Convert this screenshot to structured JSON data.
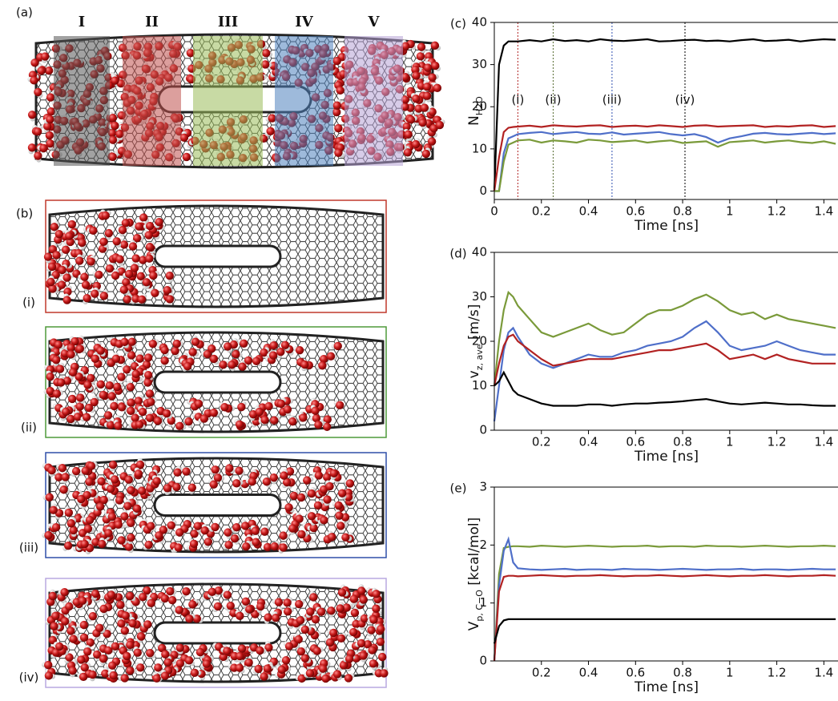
{
  "panels": {
    "a": {
      "label": "(a)",
      "regions": [
        "I",
        "II",
        "III",
        "IV",
        "V"
      ]
    },
    "b": {
      "label": "(b)",
      "snapshots": [
        "(i)",
        "(ii)",
        "(iii)",
        "(iv)"
      ]
    }
  },
  "chart_data": [
    {
      "type": "line",
      "title": "(c)",
      "xlabel": "Time [ns]",
      "ylabel": [
        "N",
        "H2O"
      ],
      "x": [
        0,
        0.02,
        0.04,
        0.06,
        0.08,
        0.1,
        0.15,
        0.2,
        0.25,
        0.3,
        0.35,
        0.4,
        0.45,
        0.5,
        0.55,
        0.6,
        0.65,
        0.7,
        0.75,
        0.8,
        0.85,
        0.9,
        0.95,
        1.0,
        1.05,
        1.1,
        1.15,
        1.2,
        1.25,
        1.3,
        1.35,
        1.4,
        1.45
      ],
      "xlim": [
        0,
        1.46
      ],
      "xticks": [
        0,
        0.2,
        0.4,
        0.6,
        0.8,
        1.0,
        1.2,
        1.4
      ],
      "ylim": [
        -2,
        40
      ],
      "yticks": [
        0,
        10,
        20,
        30,
        40
      ],
      "series": [
        {
          "color": "#000000",
          "values": [
            0,
            30,
            34.5,
            35.5,
            35.5,
            35.5,
            35.8,
            35.5,
            36,
            35.6,
            35.8,
            35.5,
            36,
            35.7,
            35.6,
            35.8,
            36,
            35.5,
            35.6,
            35.8,
            35.9,
            35.6,
            35.7,
            35.5,
            35.8,
            36,
            35.6,
            35.7,
            35.9,
            35.5,
            35.8,
            36,
            35.9
          ]
        },
        {
          "color": "#b22222",
          "values": [
            0,
            8,
            14,
            15,
            15.2,
            15.3,
            15.5,
            15.2,
            15.6,
            15.4,
            15.3,
            15.5,
            15.6,
            15.2,
            15.4,
            15.5,
            15.3,
            15.6,
            15.4,
            15.2,
            15.5,
            15.6,
            15.3,
            15.4,
            15.5,
            15.6,
            15.2,
            15.4,
            15.3,
            15.5,
            15.6,
            15.2,
            15.4
          ]
        },
        {
          "color": "#4f6fc9",
          "values": [
            0,
            0,
            9,
            12.5,
            13,
            13.5,
            13.8,
            14,
            13.5,
            13.8,
            14,
            13.6,
            13.5,
            13.9,
            13.4,
            13.6,
            13.8,
            14,
            13.5,
            13.2,
            13.5,
            12.8,
            11.5,
            12.5,
            13,
            13.6,
            13.8,
            13.5,
            13.4,
            13.6,
            13.8,
            13.5,
            13.7
          ]
        },
        {
          "color": "#7a9a3a",
          "values": [
            0,
            0,
            7,
            11,
            11.5,
            12,
            12.2,
            11.5,
            12,
            11.8,
            11.5,
            12.2,
            12,
            11.6,
            11.8,
            12,
            11.5,
            11.8,
            12,
            11.4,
            11.6,
            11.8,
            10.5,
            11.6,
            11.8,
            12,
            11.5,
            11.8,
            12,
            11.6,
            11.4,
            11.8,
            11.2
          ]
        }
      ],
      "vlines": [
        {
          "x": 0.1,
          "label": "(i)",
          "color": "#b22222"
        },
        {
          "x": 0.25,
          "label": "(ii)",
          "color": "#556b2f"
        },
        {
          "x": 0.5,
          "label": "(iii)",
          "color": "#3050b0"
        },
        {
          "x": 0.81,
          "label": "(iv)",
          "color": "#000000"
        }
      ]
    },
    {
      "type": "line",
      "title": "(d)",
      "xlabel": "Time [ns]",
      "ylabel": [
        "v",
        "z, ave",
        " [m/s]"
      ],
      "x": [
        0,
        0.02,
        0.04,
        0.06,
        0.08,
        0.1,
        0.15,
        0.2,
        0.25,
        0.3,
        0.35,
        0.4,
        0.45,
        0.5,
        0.55,
        0.6,
        0.65,
        0.7,
        0.75,
        0.8,
        0.85,
        0.9,
        0.95,
        1.0,
        1.05,
        1.1,
        1.15,
        1.2,
        1.25,
        1.3,
        1.35,
        1.4,
        1.45
      ],
      "xlim": [
        0,
        1.46
      ],
      "xticks": [
        0.2,
        0.4,
        0.6,
        0.8,
        1.0,
        1.2,
        1.4
      ],
      "ylim": [
        0,
        40
      ],
      "yticks": [
        0,
        10,
        20,
        30,
        40
      ],
      "series": [
        {
          "color": "#7a9a3a",
          "values": [
            10,
            20,
            27,
            31,
            30,
            28,
            25,
            22,
            21,
            22,
            23,
            24,
            22.5,
            21.5,
            22,
            24,
            26,
            27,
            27,
            28,
            29.5,
            30.5,
            29,
            27,
            26,
            26.5,
            25,
            26,
            25,
            24.5,
            24,
            23.5,
            23
          ]
        },
        {
          "color": "#4f6fc9",
          "values": [
            2,
            10,
            18,
            22,
            23,
            21,
            17,
            15,
            14,
            15,
            16,
            17,
            16.5,
            16.5,
            17.5,
            18,
            19,
            19.5,
            20,
            21,
            23,
            24.5,
            22,
            19,
            18,
            18.5,
            19,
            20,
            19,
            18,
            17.5,
            17,
            17
          ]
        },
        {
          "color": "#b22222",
          "values": [
            10,
            15,
            19,
            21,
            21.5,
            20,
            18,
            16,
            14.5,
            15,
            15.5,
            16,
            16,
            16,
            16.5,
            17,
            17.5,
            18,
            18,
            18.5,
            19,
            19.5,
            18,
            16,
            16.5,
            17,
            16,
            17,
            16,
            15.5,
            15,
            15,
            15
          ]
        },
        {
          "color": "#000000",
          "values": [
            10,
            11,
            13,
            11,
            9,
            8,
            7,
            6,
            5.5,
            5.5,
            5.5,
            5.8,
            5.8,
            5.5,
            5.8,
            6,
            6,
            6.2,
            6.3,
            6.5,
            6.8,
            7,
            6.5,
            6,
            5.8,
            6,
            6.2,
            6,
            5.8,
            5.8,
            5.6,
            5.5,
            5.5
          ]
        }
      ]
    },
    {
      "type": "line",
      "title": "(e)",
      "xlabel": "Time [ns]",
      "ylabel": [
        "V",
        "p, C−O",
        " [kcal/mol]"
      ],
      "x": [
        0,
        0.02,
        0.04,
        0.06,
        0.08,
        0.1,
        0.15,
        0.2,
        0.25,
        0.3,
        0.35,
        0.4,
        0.45,
        0.5,
        0.55,
        0.6,
        0.65,
        0.7,
        0.75,
        0.8,
        0.85,
        0.9,
        0.95,
        1.0,
        1.05,
        1.1,
        1.15,
        1.2,
        1.25,
        1.3,
        1.35,
        1.4,
        1.45
      ],
      "xlim": [
        0,
        1.46
      ],
      "xticks": [
        0.2,
        0.4,
        0.6,
        0.8,
        1.0,
        1.2,
        1.4
      ],
      "ylim": [
        0,
        3
      ],
      "yticks": [
        0,
        1,
        2,
        3
      ],
      "series": [
        {
          "color": "#7a9a3a",
          "values": [
            0,
            1.5,
            1.95,
            1.97,
            1.98,
            1.98,
            1.97,
            1.99,
            1.98,
            1.97,
            1.98,
            1.99,
            1.98,
            1.97,
            1.98,
            1.98,
            1.99,
            1.97,
            1.98,
            1.98,
            1.97,
            1.99,
            1.98,
            1.98,
            1.97,
            1.98,
            1.99,
            1.98,
            1.97,
            1.98,
            1.98,
            1.99,
            1.98
          ]
        },
        {
          "color": "#4f6fc9",
          "values": [
            0,
            1.3,
            1.9,
            2.1,
            1.7,
            1.6,
            1.58,
            1.57,
            1.58,
            1.59,
            1.57,
            1.58,
            1.58,
            1.57,
            1.59,
            1.58,
            1.58,
            1.57,
            1.58,
            1.59,
            1.58,
            1.57,
            1.58,
            1.58,
            1.59,
            1.57,
            1.58,
            1.58,
            1.57,
            1.58,
            1.59,
            1.58,
            1.58
          ]
        },
        {
          "color": "#b22222",
          "values": [
            0,
            1.2,
            1.45,
            1.47,
            1.47,
            1.46,
            1.47,
            1.48,
            1.47,
            1.46,
            1.47,
            1.47,
            1.48,
            1.47,
            1.46,
            1.47,
            1.47,
            1.48,
            1.47,
            1.46,
            1.47,
            1.48,
            1.47,
            1.46,
            1.47,
            1.47,
            1.48,
            1.47,
            1.46,
            1.47,
            1.47,
            1.48,
            1.47
          ]
        },
        {
          "color": "#000000",
          "values": [
            0.3,
            0.6,
            0.7,
            0.72,
            0.72,
            0.72,
            0.72,
            0.72,
            0.72,
            0.72,
            0.72,
            0.72,
            0.72,
            0.72,
            0.72,
            0.72,
            0.72,
            0.72,
            0.72,
            0.72,
            0.72,
            0.72,
            0.72,
            0.72,
            0.72,
            0.72,
            0.72,
            0.72,
            0.72,
            0.72,
            0.72,
            0.72,
            0.72
          ]
        }
      ]
    }
  ]
}
